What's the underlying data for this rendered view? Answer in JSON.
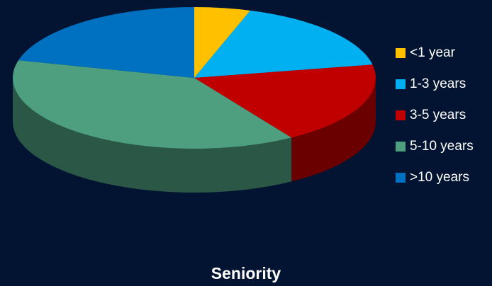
{
  "chart_data": {
    "type": "pie",
    "title": "Seniority",
    "categories": [
      "<1 year",
      "1-3 years",
      "3-5 years",
      "5-10 years",
      ">10 years"
    ],
    "values": [
      5,
      17,
      19,
      38,
      21
    ],
    "colors": [
      "#FFC000",
      "#00B0F0",
      "#C00000",
      "#4E9F7F",
      "#0070C0"
    ],
    "legend_position": "right",
    "style": "3d"
  }
}
